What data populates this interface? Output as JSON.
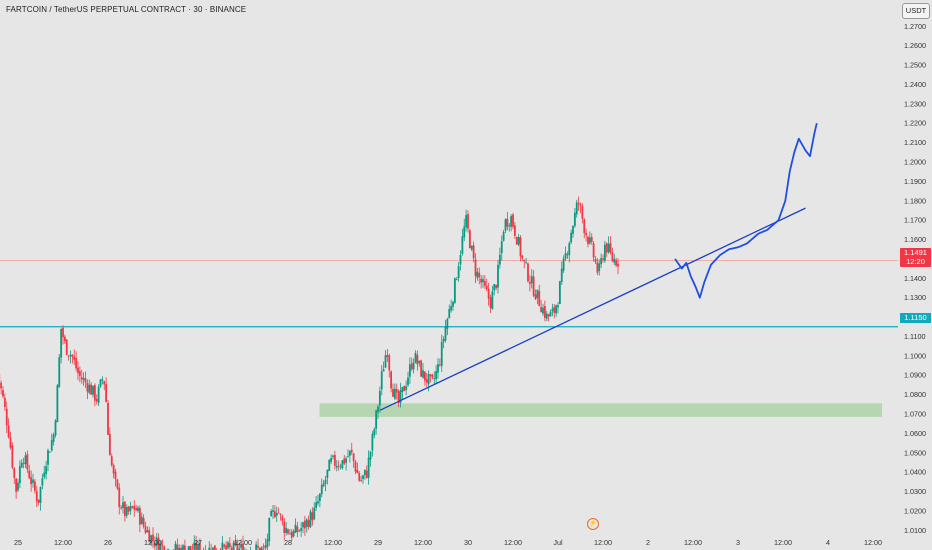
{
  "header": {
    "symbol_title": "FARTCOIN / TetherUS PERPETUAL CONTRACT · 30 · BINANCE",
    "currency": "USDT"
  },
  "price_tags": {
    "last_price": "1.1491",
    "countdown": "12:20",
    "level": "1.1150"
  },
  "colors": {
    "background": "#e6e6e6",
    "up_candle": "#089981",
    "down_candle": "#f23645",
    "trendline": "#1a3fc2",
    "projection": "#1f4fe0",
    "horizontal_level": "#10aabc",
    "support_zone": "#b5d6b0",
    "last_price_line": "#f28b8b"
  },
  "chart_data": {
    "type": "candlestick",
    "x_ticks": [
      "25",
      "12:00",
      "26",
      "12:00",
      "27",
      "12:00",
      "28",
      "12:00",
      "29",
      "12:00",
      "30",
      "12:00",
      "Jul",
      "12:00",
      "2",
      "12:00",
      "3",
      "12:00",
      "4",
      "12:00"
    ],
    "y_ticks": [
      "1.0100",
      "1.0200",
      "1.0300",
      "1.0400",
      "1.0500",
      "1.0600",
      "1.0700",
      "1.0800",
      "1.0900",
      "1.1000",
      "1.1100",
      "1.1200",
      "1.1300",
      "1.1400",
      "1.1500",
      "1.1600",
      "1.1700",
      "1.1800",
      "1.1900",
      "1.2000",
      "1.2100",
      "1.2200",
      "1.2300",
      "1.2400",
      "1.2500",
      "1.2600",
      "1.2700"
    ],
    "ylim": [
      1.0045,
      1.2815
    ],
    "last_price": 1.1491,
    "horizontal_level": 1.115,
    "support_zone": {
      "from_tick": 6.7,
      "to_tick": 19.2,
      "low": 1.0685,
      "high": 1.0755
    },
    "trendline": {
      "start": [
        8.05,
        1.072
      ],
      "end": [
        17.5,
        1.1762
      ]
    },
    "projection_path": [
      [
        14.6,
        1.15
      ],
      [
        14.75,
        1.145
      ],
      [
        14.85,
        1.148
      ],
      [
        14.95,
        1.141
      ],
      [
        15.05,
        1.136
      ],
      [
        15.15,
        1.13
      ],
      [
        15.25,
        1.138
      ],
      [
        15.4,
        1.147
      ],
      [
        15.6,
        1.152
      ],
      [
        15.8,
        1.155
      ],
      [
        16.0,
        1.156
      ],
      [
        16.2,
        1.158
      ],
      [
        16.45,
        1.163
      ],
      [
        16.65,
        1.165
      ],
      [
        16.9,
        1.17
      ],
      [
        17.05,
        1.18
      ],
      [
        17.15,
        1.195
      ],
      [
        17.25,
        1.205
      ],
      [
        17.35,
        1.212
      ],
      [
        17.5,
        1.206
      ],
      [
        17.6,
        1.203
      ],
      [
        17.7,
        1.215
      ],
      [
        17.75,
        1.22
      ]
    ],
    "price_anchors": [
      [
        -0.5,
        1.095
      ],
      [
        -0.35,
        1.08
      ],
      [
        -0.2,
        1.06
      ],
      [
        -0.05,
        1.03
      ],
      [
        0.1,
        1.05
      ],
      [
        0.3,
        1.035
      ],
      [
        0.45,
        1.025
      ],
      [
        0.6,
        1.045
      ],
      [
        0.8,
        1.06
      ],
      [
        0.9,
        1.09
      ],
      [
        0.95,
        1.115
      ],
      [
        1.05,
        1.105
      ],
      [
        1.2,
        1.1
      ],
      [
        1.35,
        1.09
      ],
      [
        1.55,
        1.085
      ],
      [
        1.75,
        1.078
      ],
      [
        1.9,
        1.09
      ],
      [
        1.95,
        1.08
      ],
      [
        2.0,
        1.06
      ],
      [
        2.1,
        1.04
      ],
      [
        2.25,
        1.025
      ],
      [
        2.4,
        1.018
      ],
      [
        2.6,
        1.022
      ],
      [
        2.8,
        1.012
      ],
      [
        3.0,
        1.005
      ],
      [
        3.3,
        1.0
      ],
      [
        5.5,
        1.0
      ],
      [
        5.6,
        1.015
      ],
      [
        5.75,
        1.022
      ],
      [
        5.9,
        1.012
      ],
      [
        6.1,
        1.008
      ],
      [
        6.35,
        1.012
      ],
      [
        6.6,
        1.02
      ],
      [
        6.75,
        1.03
      ],
      [
        6.95,
        1.045
      ],
      [
        7.2,
        1.045
      ],
      [
        7.4,
        1.05
      ],
      [
        7.6,
        1.035
      ],
      [
        7.75,
        1.04
      ],
      [
        7.9,
        1.06
      ],
      [
        8.0,
        1.075
      ],
      [
        8.1,
        1.092
      ],
      [
        8.2,
        1.105
      ],
      [
        8.3,
        1.085
      ],
      [
        8.45,
        1.075
      ],
      [
        8.6,
        1.085
      ],
      [
        8.8,
        1.1
      ],
      [
        9.0,
        1.09
      ],
      [
        9.2,
        1.085
      ],
      [
        9.35,
        1.095
      ],
      [
        9.5,
        1.115
      ],
      [
        9.6,
        1.125
      ],
      [
        9.7,
        1.135
      ],
      [
        9.8,
        1.15
      ],
      [
        9.95,
        1.17
      ],
      [
        10.05,
        1.158
      ],
      [
        10.15,
        1.145
      ],
      [
        10.35,
        1.135
      ],
      [
        10.5,
        1.128
      ],
      [
        10.65,
        1.14
      ],
      [
        10.8,
        1.168
      ],
      [
        10.95,
        1.172
      ],
      [
        11.1,
        1.16
      ],
      [
        11.2,
        1.15
      ],
      [
        11.4,
        1.138
      ],
      [
        11.55,
        1.13
      ],
      [
        11.75,
        1.12
      ],
      [
        11.9,
        1.122
      ],
      [
        12.0,
        1.13
      ],
      [
        12.15,
        1.15
      ],
      [
        12.3,
        1.165
      ],
      [
        12.45,
        1.18
      ],
      [
        12.6,
        1.165
      ],
      [
        12.75,
        1.155
      ],
      [
        12.9,
        1.142
      ],
      [
        13.05,
        1.158
      ],
      [
        13.2,
        1.15
      ],
      [
        13.35,
        1.149
      ]
    ]
  }
}
